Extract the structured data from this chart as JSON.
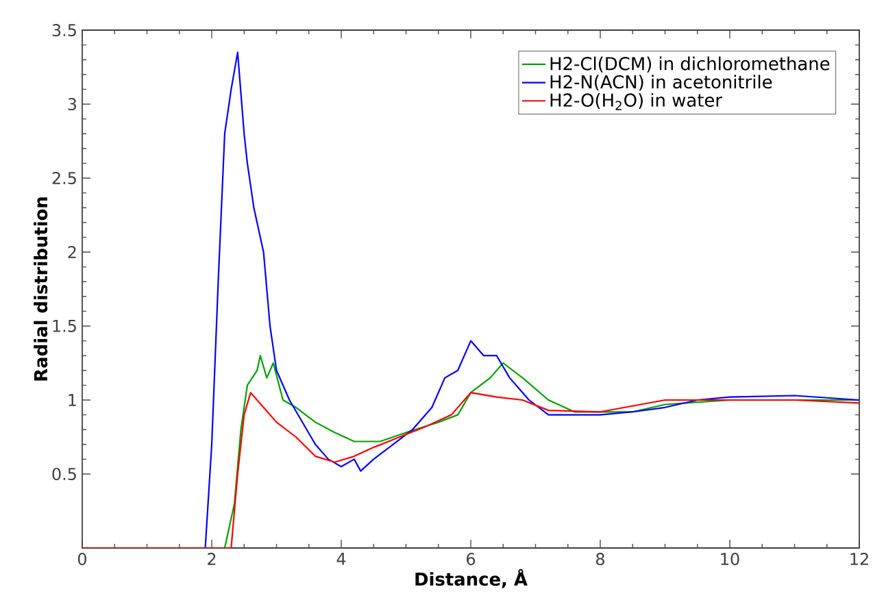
{
  "chart_data": {
    "type": "line",
    "xlabel": "Distance, Å",
    "ylabel": "Radial distribution",
    "xlim": [
      0,
      12
    ],
    "ylim": [
      0,
      3.5
    ],
    "xticks": [
      0,
      2,
      4,
      6,
      8,
      10,
      12
    ],
    "yticks": [
      0.5,
      1,
      1.5,
      2,
      2.5,
      3,
      3.5
    ],
    "grid": false,
    "legend": "top right",
    "marker": "none",
    "line_style": "solid",
    "series": [
      {
        "name": "H2-Cl(DCM) in dichloromethane",
        "color": "#00a000",
        "x": [
          0,
          2.2,
          2.35,
          2.45,
          2.55,
          2.7,
          2.75,
          2.85,
          2.95,
          3.1,
          3.3,
          3.6,
          3.9,
          4.2,
          4.6,
          5.0,
          5.5,
          5.8,
          6.0,
          6.3,
          6.5,
          6.8,
          7.2,
          7.6,
          8.5,
          9,
          10,
          12
        ],
        "values": [
          0,
          0,
          0.3,
          0.8,
          1.1,
          1.2,
          1.3,
          1.15,
          1.25,
          1.0,
          0.95,
          0.85,
          0.78,
          0.72,
          0.72,
          0.78,
          0.85,
          0.9,
          1.05,
          1.15,
          1.25,
          1.15,
          1.0,
          0.92,
          0.92,
          0.97,
          1.0,
          1.0
        ]
      },
      {
        "name": "H2-N(ACN) in acetonitrile",
        "color": "#0000ff",
        "x": [
          0,
          1.9,
          2.0,
          2.1,
          2.2,
          2.3,
          2.4,
          2.5,
          2.55,
          2.65,
          2.8,
          2.9,
          3.0,
          3.2,
          3.4,
          3.6,
          3.8,
          4.0,
          4.2,
          4.3,
          4.5,
          4.8,
          5.1,
          5.4,
          5.6,
          5.8,
          6.0,
          6.2,
          6.4,
          6.6,
          6.9,
          7.2,
          8,
          8.5,
          9,
          9.5,
          10,
          11,
          12
        ],
        "values": [
          0,
          0,
          0.7,
          1.8,
          2.8,
          3.1,
          3.35,
          2.8,
          2.6,
          2.3,
          2.0,
          1.5,
          1.2,
          1.0,
          0.85,
          0.7,
          0.6,
          0.55,
          0.6,
          0.52,
          0.6,
          0.7,
          0.8,
          0.95,
          1.15,
          1.2,
          1.4,
          1.3,
          1.3,
          1.15,
          1.0,
          0.9,
          0.9,
          0.92,
          0.95,
          1.0,
          1.02,
          1.03,
          1.0
        ]
      },
      {
        "name": "H2-O(H$_{2}$O) in water",
        "color": "#ff0000",
        "x": [
          0,
          2.3,
          2.4,
          2.5,
          2.6,
          2.8,
          3.0,
          3.3,
          3.6,
          3.9,
          4.2,
          4.5,
          4.9,
          5.3,
          5.7,
          6.0,
          6.4,
          6.8,
          7.2,
          8,
          8.5,
          9,
          10,
          11,
          12
        ],
        "values": [
          0,
          0,
          0.5,
          0.9,
          1.05,
          0.95,
          0.85,
          0.75,
          0.62,
          0.58,
          0.62,
          0.68,
          0.75,
          0.82,
          0.9,
          1.05,
          1.02,
          1.0,
          0.93,
          0.92,
          0.96,
          1.0,
          1.0,
          1.0,
          0.98
        ]
      }
    ]
  }
}
